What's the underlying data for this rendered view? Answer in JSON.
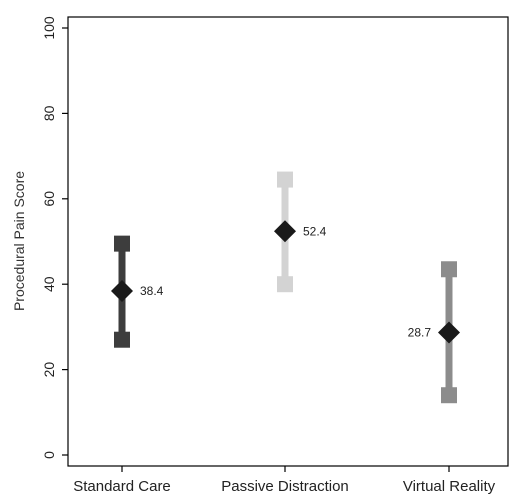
{
  "chart_data": {
    "type": "scatter",
    "title": "",
    "ylabel": "Procedural Pain Score",
    "xlabel": "",
    "ylim": [
      0,
      100
    ],
    "yticks": [
      0,
      20,
      40,
      60,
      80,
      100
    ],
    "grid": false,
    "categories": [
      "Standard Care",
      "Passive Distraction",
      "Virtual Reality"
    ],
    "points": [
      {
        "category": "Standard Care",
        "mean": 38.4,
        "lower": 27,
        "upper": 49.5,
        "label": "38.4",
        "color": "#3d3d3d"
      },
      {
        "category": "Passive Distraction",
        "mean": 52.4,
        "lower": 40,
        "upper": 64.5,
        "label": "52.4",
        "color": "#d3d3d3"
      },
      {
        "category": "Virtual Reality",
        "mean": 28.7,
        "lower": 14,
        "upper": 43.5,
        "label": "28.7",
        "color": "#8c8c8c"
      }
    ],
    "marker_color": "#1a1a1a"
  }
}
